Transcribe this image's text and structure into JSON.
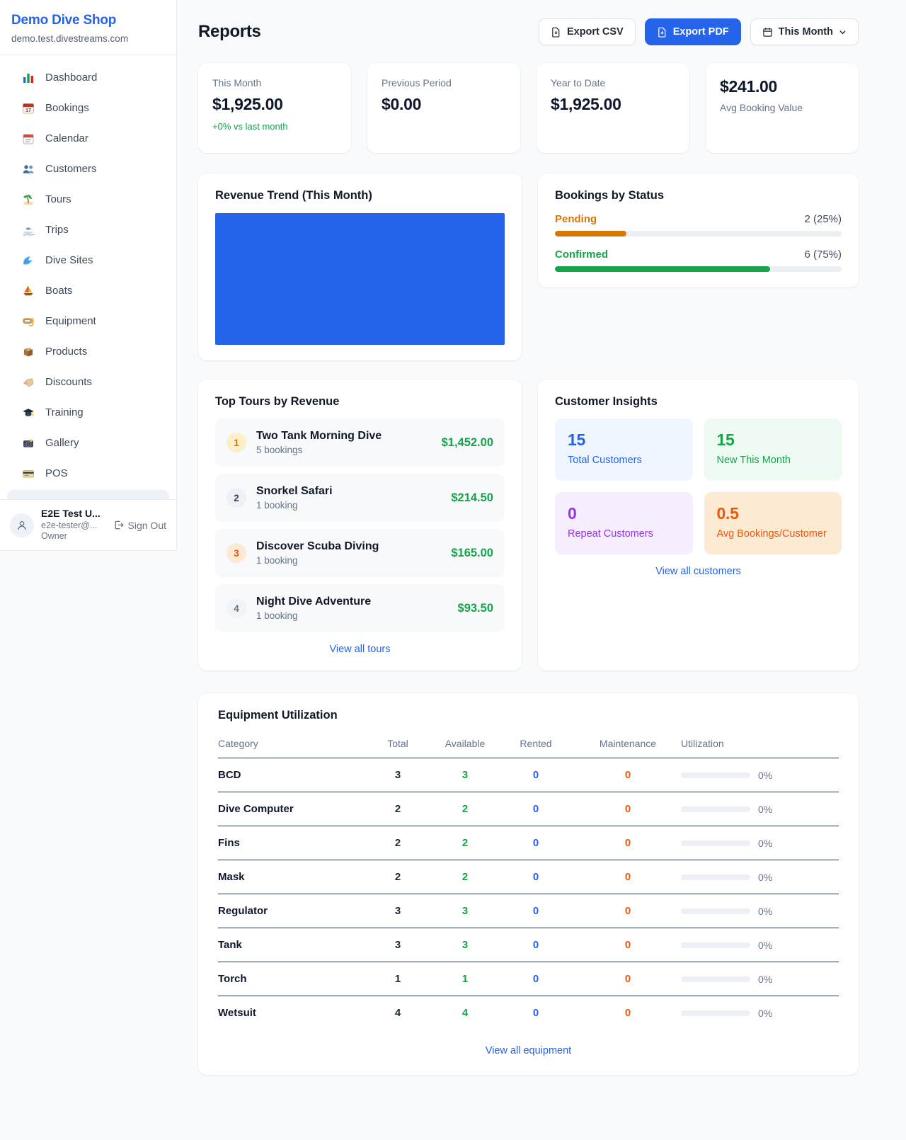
{
  "app": {
    "brand": "Demo Dive Shop",
    "domain": "demo.test.divestreams.com"
  },
  "sidebar": {
    "items": [
      {
        "label": "Dashboard",
        "icon": "bar-chart-icon"
      },
      {
        "label": "Bookings",
        "icon": "calendar-date-icon"
      },
      {
        "label": "Calendar",
        "icon": "tear-off-calendar-icon"
      },
      {
        "label": "Customers",
        "icon": "people-icon"
      },
      {
        "label": "Tours",
        "icon": "island-icon"
      },
      {
        "label": "Trips",
        "icon": "speedboat-icon"
      },
      {
        "label": "Dive Sites",
        "icon": "wave-icon"
      },
      {
        "label": "Boats",
        "icon": "sailboat-icon"
      },
      {
        "label": "Equipment",
        "icon": "dive-mask-icon"
      },
      {
        "label": "Products",
        "icon": "package-icon"
      },
      {
        "label": "Discounts",
        "icon": "tag-icon"
      },
      {
        "label": "Training",
        "icon": "graduation-cap-icon"
      },
      {
        "label": "Gallery",
        "icon": "camera-icon"
      },
      {
        "label": "POS",
        "icon": "credit-card-icon"
      }
    ],
    "user": {
      "name": "E2E Test U...",
      "email": "e2e-tester@...",
      "role": "Owner",
      "sign_out_label": "Sign Out"
    }
  },
  "header": {
    "title": "Reports",
    "export_csv_label": "Export CSV",
    "export_pdf_label": "Export PDF",
    "period_label": "This Month"
  },
  "stats": {
    "this_month": {
      "label": "This Month",
      "value": "$1,925.00",
      "delta": "+0% vs last month"
    },
    "previous_period": {
      "label": "Previous Period",
      "value": "$0.00"
    },
    "year_to_date": {
      "label": "Year to Date",
      "value": "$1,925.00"
    },
    "avg_booking": {
      "value": "$241.00",
      "label": "Avg Booking Value"
    }
  },
  "revenue_trend": {
    "title": "Revenue Trend (This Month)",
    "bar_fill_pct": 100
  },
  "bookings_by_status": {
    "title": "Bookings by Status",
    "rows": [
      {
        "label": "Pending",
        "value": "2 (25%)",
        "pct": 25
      },
      {
        "label": "Confirmed",
        "value": "6 (75%)",
        "pct": 75
      }
    ]
  },
  "top_tours": {
    "title": "Top Tours by Revenue",
    "items": [
      {
        "rank": "1",
        "name": "Two Tank Morning Dive",
        "bookings": "5 bookings",
        "revenue": "$1,452.00"
      },
      {
        "rank": "2",
        "name": "Snorkel Safari",
        "bookings": "1 booking",
        "revenue": "$214.50"
      },
      {
        "rank": "3",
        "name": "Discover Scuba Diving",
        "bookings": "1 booking",
        "revenue": "$165.00"
      },
      {
        "rank": "4",
        "name": "Night Dive Adventure",
        "bookings": "1 booking",
        "revenue": "$93.50"
      }
    ],
    "view_all_label": "View all tours"
  },
  "customer_insights": {
    "title": "Customer Insights",
    "tiles": [
      {
        "value": "15",
        "label": "Total Customers",
        "accent": "#2563eb",
        "bg": "#eff6ff"
      },
      {
        "value": "15",
        "label": "New This Month",
        "accent": "#16a34a",
        "bg": "#edfbf2"
      },
      {
        "value": "0",
        "label": "Repeat Customers",
        "accent": "#9333ea",
        "bg": "#f6eefe"
      },
      {
        "value": "0.5",
        "label": "Avg Bookings/Customer",
        "accent": "#ea580c",
        "bg": "#fdead2"
      }
    ],
    "view_all_label": "View all customers"
  },
  "equipment": {
    "title": "Equipment Utilization",
    "columns": [
      "Category",
      "Total",
      "Available",
      "Rented",
      "Maintenance",
      "Utilization"
    ],
    "rows": [
      {
        "category": "BCD",
        "total": "3",
        "available": "3",
        "rented": "0",
        "maintenance": "0",
        "utilization": "0%",
        "utilization_pct": 0
      },
      {
        "category": "Dive Computer",
        "total": "2",
        "available": "2",
        "rented": "0",
        "maintenance": "0",
        "utilization": "0%",
        "utilization_pct": 0
      },
      {
        "category": "Fins",
        "total": "2",
        "available": "2",
        "rented": "0",
        "maintenance": "0",
        "utilization": "0%",
        "utilization_pct": 0
      },
      {
        "category": "Mask",
        "total": "2",
        "available": "2",
        "rented": "0",
        "maintenance": "0",
        "utilization": "0%",
        "utilization_pct": 0
      },
      {
        "category": "Regulator",
        "total": "3",
        "available": "3",
        "rented": "0",
        "maintenance": "0",
        "utilization": "0%",
        "utilization_pct": 0
      },
      {
        "category": "Tank",
        "total": "3",
        "available": "3",
        "rented": "0",
        "maintenance": "0",
        "utilization": "0%",
        "utilization_pct": 0
      },
      {
        "category": "Torch",
        "total": "1",
        "available": "1",
        "rented": "0",
        "maintenance": "0",
        "utilization": "0%",
        "utilization_pct": 0
      },
      {
        "category": "Wetsuit",
        "total": "4",
        "available": "4",
        "rented": "0",
        "maintenance": "0",
        "utilization": "0%",
        "utilization_pct": 0
      }
    ],
    "view_all_label": "View all equipment"
  },
  "colors": {
    "primary": "#2563eb",
    "success": "#16a34a",
    "pending_orange": "#d97706",
    "maintenance_orange": "#ea580c",
    "purple": "#9333ea"
  }
}
